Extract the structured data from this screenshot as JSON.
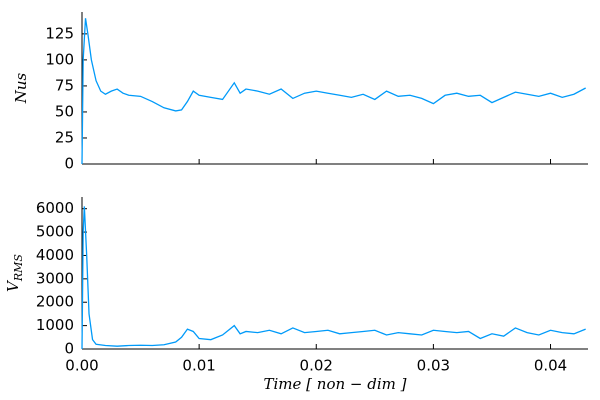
{
  "chart_data": [
    {
      "type": "line",
      "ylabel": "Nus",
      "color": "#009af9",
      "x": [
        0,
        0.0001,
        0.0003,
        0.0005,
        0.0008,
        0.0012,
        0.0016,
        0.002,
        0.0025,
        0.003,
        0.0035,
        0.004,
        0.005,
        0.006,
        0.007,
        0.008,
        0.0085,
        0.009,
        0.0095,
        0.01,
        0.011,
        0.012,
        0.013,
        0.0135,
        0.014,
        0.015,
        0.016,
        0.017,
        0.018,
        0.019,
        0.02,
        0.021,
        0.022,
        0.023,
        0.024,
        0.025,
        0.026,
        0.027,
        0.028,
        0.029,
        0.03,
        0.031,
        0.032,
        0.033,
        0.034,
        0.035,
        0.036,
        0.037,
        0.038,
        0.039,
        0.04,
        0.041,
        0.042,
        0.043
      ],
      "values": [
        0,
        100,
        140,
        125,
        100,
        80,
        70,
        67,
        70,
        72,
        68,
        66,
        65,
        60,
        54,
        51,
        52,
        60,
        70,
        66,
        64,
        62,
        78,
        68,
        72,
        70,
        67,
        72,
        63,
        68,
        70,
        68,
        66,
        64,
        67,
        62,
        70,
        65,
        66,
        63,
        58,
        66,
        68,
        65,
        66,
        59,
        64,
        69,
        67,
        65,
        68,
        64,
        67,
        73
      ],
      "xlim": [
        0,
        0.0432
      ],
      "xticks": [
        0.01,
        0.02,
        0.03,
        0.04
      ],
      "ylim": [
        0,
        146
      ],
      "yticks": [
        0,
        25,
        50,
        75,
        100,
        125
      ]
    },
    {
      "type": "line",
      "ylabel": {
        "base": "V",
        "sub": "RMS"
      },
      "xlabel": "Time [ non − dim ]",
      "color": "#009af9",
      "x": [
        0,
        0.0001,
        0.0002,
        0.0004,
        0.0006,
        0.0009,
        0.0012,
        0.002,
        0.003,
        0.004,
        0.005,
        0.006,
        0.007,
        0.008,
        0.0085,
        0.009,
        0.0095,
        0.01,
        0.011,
        0.012,
        0.013,
        0.0135,
        0.014,
        0.015,
        0.016,
        0.017,
        0.018,
        0.019,
        0.02,
        0.021,
        0.022,
        0.023,
        0.024,
        0.025,
        0.026,
        0.027,
        0.028,
        0.029,
        0.03,
        0.031,
        0.032,
        0.033,
        0.034,
        0.035,
        0.036,
        0.037,
        0.038,
        0.039,
        0.04,
        0.041,
        0.042,
        0.043
      ],
      "values": [
        0,
        5000,
        6100,
        4000,
        1500,
        400,
        200,
        150,
        120,
        150,
        160,
        150,
        180,
        300,
        500,
        850,
        750,
        450,
        400,
        600,
        1000,
        650,
        750,
        700,
        800,
        650,
        900,
        700,
        750,
        800,
        650,
        700,
        750,
        800,
        600,
        700,
        650,
        600,
        800,
        750,
        700,
        750,
        450,
        650,
        550,
        900,
        700,
        600,
        800,
        700,
        650,
        850
      ],
      "xlim": [
        0,
        0.0432
      ],
      "xticks": [
        {
          "value": 0,
          "label": "0.00"
        },
        0.01,
        0.02,
        0.03,
        0.04
      ],
      "ylim": [
        0,
        6500
      ],
      "yticks": [
        0,
        1000,
        2000,
        3000,
        4000,
        5000,
        6000
      ]
    }
  ]
}
